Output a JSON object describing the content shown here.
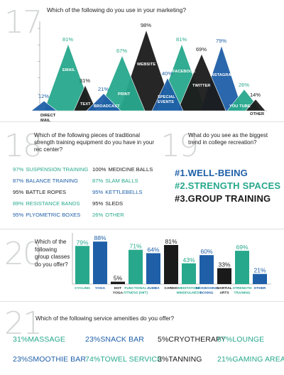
{
  "colors": {
    "teal": "#27a88c",
    "blue": "#1f5fa8",
    "black": "#1a1a1a",
    "grey": "#d4d6d6"
  },
  "s17": {
    "number": "17",
    "question": "Which of the following do you use in your marketing?"
  },
  "s18": {
    "number": "18",
    "question": [
      "Which of the following pieces of traditional",
      "strength training equipment do you have in your",
      "rec center?"
    ],
    "items": [
      {
        "value": "97%",
        "label": "SUSPENSION TRAINING",
        "color": "teal"
      },
      {
        "value": "100%",
        "label": "MEDICINE BALLS",
        "color": "black"
      },
      {
        "value": "87%",
        "label": "BALANCE TRAINING",
        "color": "blue"
      },
      {
        "value": "87%",
        "label": "SLAM BALLS",
        "color": "teal"
      },
      {
        "value": "95%",
        "label": "BATTLE ROPES",
        "color": "black"
      },
      {
        "value": "95%",
        "label": "KETTLEBELLS",
        "color": "blue"
      },
      {
        "value": "89%",
        "label": "RESISTANCE BANDS",
        "color": "teal"
      },
      {
        "value": "95%",
        "label": "SLEDS",
        "color": "black"
      },
      {
        "value": "95%",
        "label": "PLYOMETRIC BOXES",
        "color": "blue"
      },
      {
        "value": "26%",
        "label": "OTHER",
        "color": "teal"
      }
    ]
  },
  "s19": {
    "number": "19",
    "question": [
      "What do you see as the biggest",
      "trend in college recreation?"
    ],
    "trends": [
      {
        "text": "#1.WELL-BEING",
        "color": "blue"
      },
      {
        "text": "#2.STRENGTH SPACES",
        "color": "teal"
      },
      {
        "text": "#3.GROUP TRAINING",
        "color": "black"
      }
    ]
  },
  "s20": {
    "number": "20",
    "question": [
      "Which of the",
      "following",
      "group classes",
      "do you offer?"
    ]
  },
  "s21": {
    "number": "21",
    "question": "Which of the following service amenities do you offer?",
    "items": [
      {
        "value": "31%",
        "label": "MASSAGE"
      },
      {
        "value": "23%",
        "label": "SNACK BAR"
      },
      {
        "value": "5%",
        "label": "CRYOTHERAPY"
      },
      {
        "value": "67%",
        "label": "LOUNGE"
      },
      {
        "value": "23%",
        "label": "SMOOTHIE BAR"
      },
      {
        "value": "74%",
        "label": "TOWEL SERVICE"
      },
      {
        "value": "3%",
        "label": "TANNING"
      },
      {
        "value": "21%",
        "label": "GAMING AREA"
      }
    ]
  },
  "chart_data": [
    {
      "type": "area",
      "title": "Which of the following do you use in your marketing?",
      "ylim": [
        0,
        100
      ],
      "categories": [
        "DIRECT MAIL",
        "EMAIL",
        "TEXT",
        "BROADCAST",
        "PRINT",
        "WEBSITE",
        "SPECIAL EVENTS",
        "FACEBOOK",
        "TWITTER",
        "INSTAGRAM",
        "YOU TUBE",
        "OTHER"
      ],
      "values": [
        12,
        81,
        31,
        21,
        67,
        98,
        40,
        81,
        69,
        79,
        26,
        14
      ],
      "colors": [
        "blue",
        "teal",
        "black",
        "blue",
        "teal",
        "black",
        "blue",
        "teal",
        "black",
        "blue",
        "teal",
        "black"
      ]
    },
    {
      "type": "bar",
      "title": "Which of the following group classes do you offer?",
      "ylim": [
        0,
        100
      ],
      "categories": [
        "CYCLING",
        "YOGA",
        "HOT YOGA",
        "FUNCTIONAL FITNESS (HIIT)",
        "ZUMBA",
        "CARDIO",
        "MEDITATION/ MINDFULNESS",
        "KICKBOXING BOXING",
        "MARTIAL ARTS",
        "STRENGTH TRAINING",
        "OTHER"
      ],
      "values": [
        79,
        88,
        5,
        71,
        64,
        81,
        43,
        60,
        33,
        69,
        21
      ],
      "colors": [
        "teal",
        "blue",
        "black",
        "teal",
        "blue",
        "black",
        "teal",
        "blue",
        "black",
        "teal",
        "blue"
      ]
    }
  ]
}
